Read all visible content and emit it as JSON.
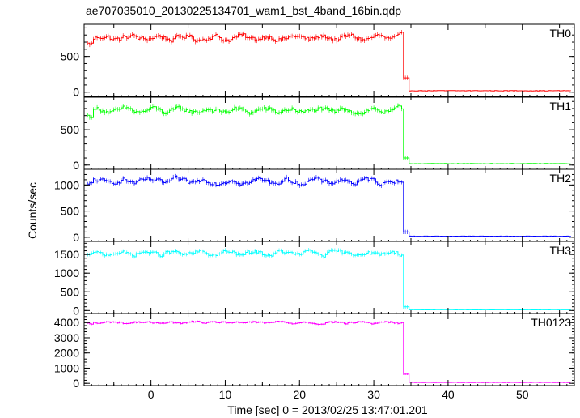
{
  "chart_data": {
    "type": "line",
    "title": "ae707035010_20130225134701_wam1_bst_4band_16bin.qdp",
    "xlabel": "Time [sec] 0 = 2013/02/25 13:47:01.201",
    "ylabel": "Counts/sec",
    "xlim": [
      -9,
      57
    ],
    "x_ticks": [
      "0",
      "10",
      "20",
      "30",
      "40",
      "50"
    ],
    "grid": false,
    "legend": "none",
    "segment": {
      "x_start": -8.5,
      "x_step": 0.25,
      "drop_x": 34.0
    },
    "series": [
      {
        "name": "TH0",
        "color": "#ff0000",
        "ylim": [
          -60,
          950
        ],
        "y_ticks": [
          "0",
          "500"
        ],
        "plateau": 760,
        "noise": 70,
        "tail": 20,
        "tail_step": 200
      },
      {
        "name": "TH1",
        "color": "#00ff00",
        "ylim": [
          -60,
          960
        ],
        "y_ticks": [
          "0",
          "500"
        ],
        "plateau": 770,
        "noise": 70,
        "tail": 20,
        "tail_step": 100
      },
      {
        "name": "TH2",
        "color": "#0000ff",
        "ylim": [
          -80,
          1300
        ],
        "y_ticks": [
          "0",
          "500",
          "1000"
        ],
        "plateau": 1070,
        "noise": 90,
        "tail": 20,
        "tail_step": 100
      },
      {
        "name": "TH3",
        "color": "#00ffff",
        "ylim": [
          -80,
          1850
        ],
        "y_ticks": [
          "0",
          "500",
          "1000",
          "1500"
        ],
        "plateau": 1530,
        "noise": 110,
        "tail": 20,
        "tail_step": 100
      },
      {
        "name": "TH0123",
        "color": "#ff00ff",
        "ylim": [
          -150,
          4600
        ],
        "y_ticks": [
          "0",
          "1000",
          "2000",
          "3000",
          "4000"
        ],
        "plateau": 4000,
        "noise": 130,
        "tail": 60,
        "tail_step": 600
      }
    ]
  }
}
